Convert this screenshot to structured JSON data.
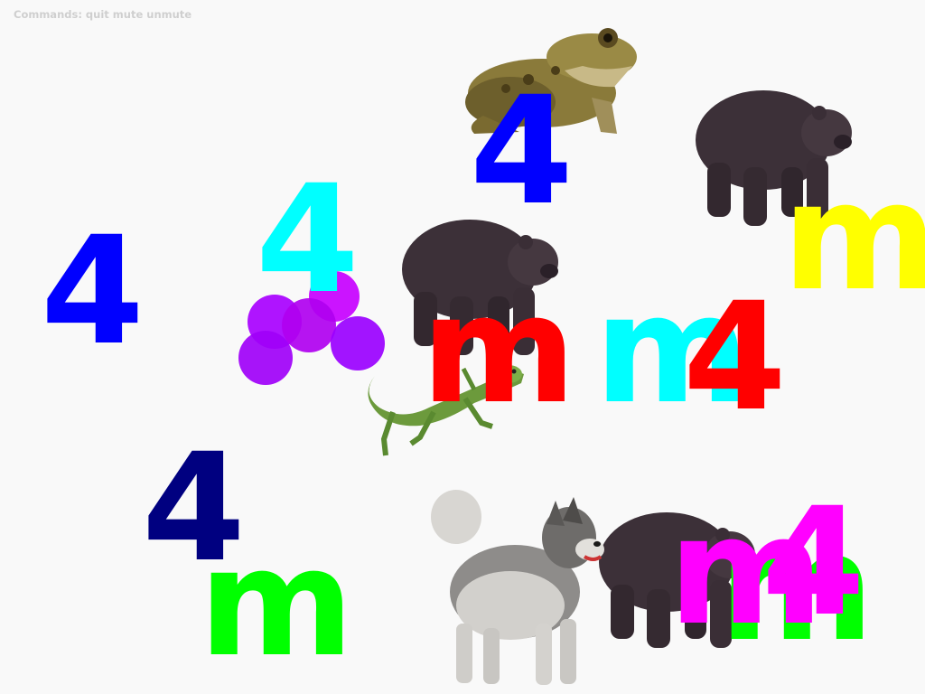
{
  "hint": {
    "text": "Commands: quit mute unmute"
  },
  "glyphs": [
    {
      "text": "4",
      "color": "#0000ff"
    },
    {
      "text": "4",
      "color": "#00ffff"
    },
    {
      "text": "4",
      "color": "#0000ff"
    },
    {
      "text": "m",
      "color": "#ffff00"
    },
    {
      "text": "m",
      "color": "#ff0000"
    },
    {
      "text": "m",
      "color": "#00ffff"
    },
    {
      "text": "4",
      "color": "#ff0000"
    },
    {
      "text": "4",
      "color": "#000080"
    },
    {
      "text": "m",
      "color": "#00ff00"
    },
    {
      "text": "m",
      "color": "#00ff00"
    },
    {
      "text": "m",
      "color": "#ff00ff"
    },
    {
      "text": "4",
      "color": "#ff00ff"
    }
  ],
  "sprites": [
    {
      "icon": "frog-icon"
    },
    {
      "icon": "bear-icon"
    },
    {
      "icon": "bear-icon"
    },
    {
      "icon": "bear-icon"
    },
    {
      "icon": "grapes-icon"
    },
    {
      "icon": "lizard-icon"
    },
    {
      "icon": "husky-dog-icon"
    }
  ]
}
